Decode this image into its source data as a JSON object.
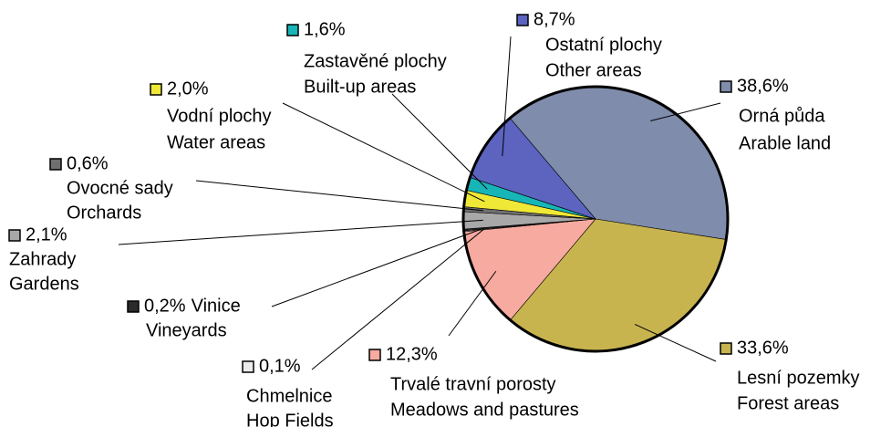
{
  "chart_data": {
    "type": "pie",
    "categories": [
      "Orná půda",
      "Lesní pozemky",
      "Trvalé travní porosty",
      "Chmelnice",
      "Vinice",
      "Zahrady",
      "Ovocné sady",
      "Vodní plochy",
      "Zastavěné plochy",
      "Ostatní plochy"
    ],
    "categories_en": [
      "Arable land",
      "Forest areas",
      "Meadows and pastures",
      "Hop Fields",
      "Vineyards",
      "Gardens",
      "Orchards",
      "Water areas",
      "Built-up areas",
      "Other areas"
    ],
    "values": [
      38.6,
      33.6,
      12.3,
      0.1,
      0.2,
      2.1,
      0.6,
      2.0,
      1.6,
      8.7
    ],
    "value_labels": [
      "38,6%",
      "33,6%",
      "12,3%",
      "0,1%",
      "0,2%",
      "2,1%",
      "0,6%",
      "2,0%",
      "1,6%",
      "8,7%"
    ],
    "colors": [
      "#7f8cab",
      "#c8b44f",
      "#f7aaa0",
      "#ececec",
      "#2b2b2b",
      "#a8a8a8",
      "#707070",
      "#f0e836",
      "#17b5b8",
      "#5c64c0"
    ]
  }
}
